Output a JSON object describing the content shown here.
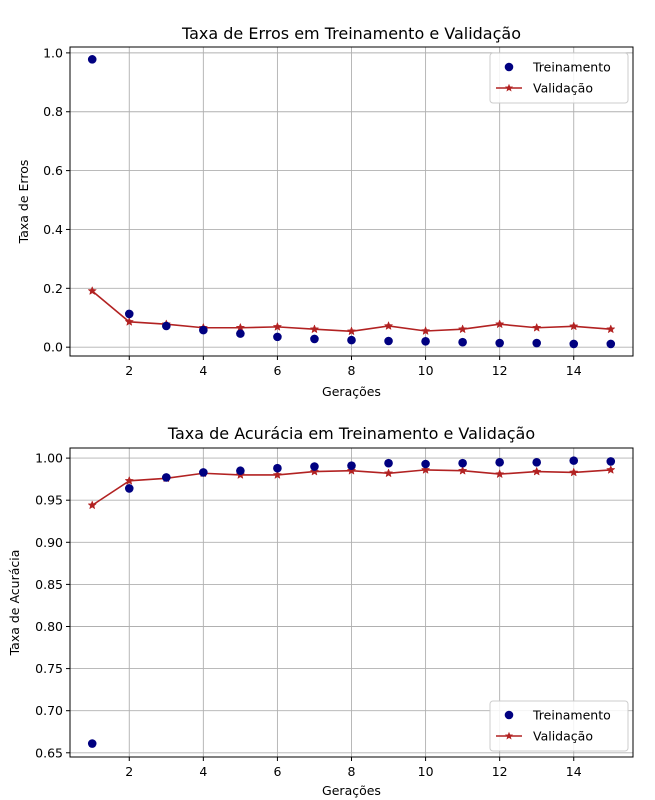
{
  "chart_data": [
    {
      "type": "line",
      "title": "Taxa de Erros em Treinamento e Validação",
      "xlabel": "Gerações",
      "ylabel": "Taxa de Erros",
      "xlim": [
        0.4,
        15.6
      ],
      "ylim": [
        -0.03,
        1.02
      ],
      "xticks": [
        2,
        4,
        6,
        8,
        10,
        12,
        14
      ],
      "xtick_labels": [
        "2",
        "4",
        "6",
        "8",
        "10",
        "12",
        "14"
      ],
      "yticks": [
        0.0,
        0.2,
        0.4,
        0.6,
        0.8,
        1.0
      ],
      "ytick_labels": [
        "0.0",
        "0.2",
        "0.4",
        "0.6",
        "0.8",
        "1.0"
      ],
      "grid": true,
      "legend_position": "top-right",
      "x": [
        1,
        2,
        3,
        4,
        5,
        6,
        7,
        8,
        9,
        10,
        11,
        12,
        13,
        14,
        15
      ],
      "series": [
        {
          "name": "Treinamento",
          "style": "scatter",
          "color": "#000080",
          "values": [
            0.978,
            0.113,
            0.072,
            0.058,
            0.046,
            0.035,
            0.028,
            0.024,
            0.021,
            0.02,
            0.017,
            0.014,
            0.014,
            0.011,
            0.011
          ]
        },
        {
          "name": "Validação",
          "style": "line-star",
          "color": "#b22222",
          "values": [
            0.191,
            0.086,
            0.078,
            0.066,
            0.066,
            0.069,
            0.061,
            0.054,
            0.072,
            0.055,
            0.061,
            0.078,
            0.066,
            0.071,
            0.061
          ]
        }
      ]
    },
    {
      "type": "line",
      "title": "Taxa de Acurácia em Treinamento e Validação",
      "xlabel": "Gerações",
      "ylabel": "Taxa de Acurácia",
      "xlim": [
        0.4,
        15.6
      ],
      "ylim": [
        0.645,
        1.012
      ],
      "xticks": [
        2,
        4,
        6,
        8,
        10,
        12,
        14
      ],
      "xtick_labels": [
        "2",
        "4",
        "6",
        "8",
        "10",
        "12",
        "14"
      ],
      "yticks": [
        0.65,
        0.7,
        0.75,
        0.8,
        0.85,
        0.9,
        0.95,
        1.0
      ],
      "ytick_labels": [
        "0.65",
        "0.70",
        "0.75",
        "0.80",
        "0.85",
        "0.90",
        "0.95",
        "1.00"
      ],
      "grid": true,
      "legend_position": "bottom-right",
      "x": [
        1,
        2,
        3,
        4,
        5,
        6,
        7,
        8,
        9,
        10,
        11,
        12,
        13,
        14,
        15
      ],
      "series": [
        {
          "name": "Treinamento",
          "style": "scatter",
          "color": "#000080",
          "values": [
            0.661,
            0.964,
            0.977,
            0.983,
            0.985,
            0.988,
            0.99,
            0.991,
            0.994,
            0.993,
            0.994,
            0.995,
            0.995,
            0.997,
            0.996
          ]
        },
        {
          "name": "Validação",
          "style": "line-star",
          "color": "#b22222",
          "values": [
            0.944,
            0.973,
            0.976,
            0.982,
            0.98,
            0.98,
            0.984,
            0.985,
            0.982,
            0.986,
            0.985,
            0.981,
            0.984,
            0.983,
            0.986
          ]
        }
      ]
    }
  ]
}
